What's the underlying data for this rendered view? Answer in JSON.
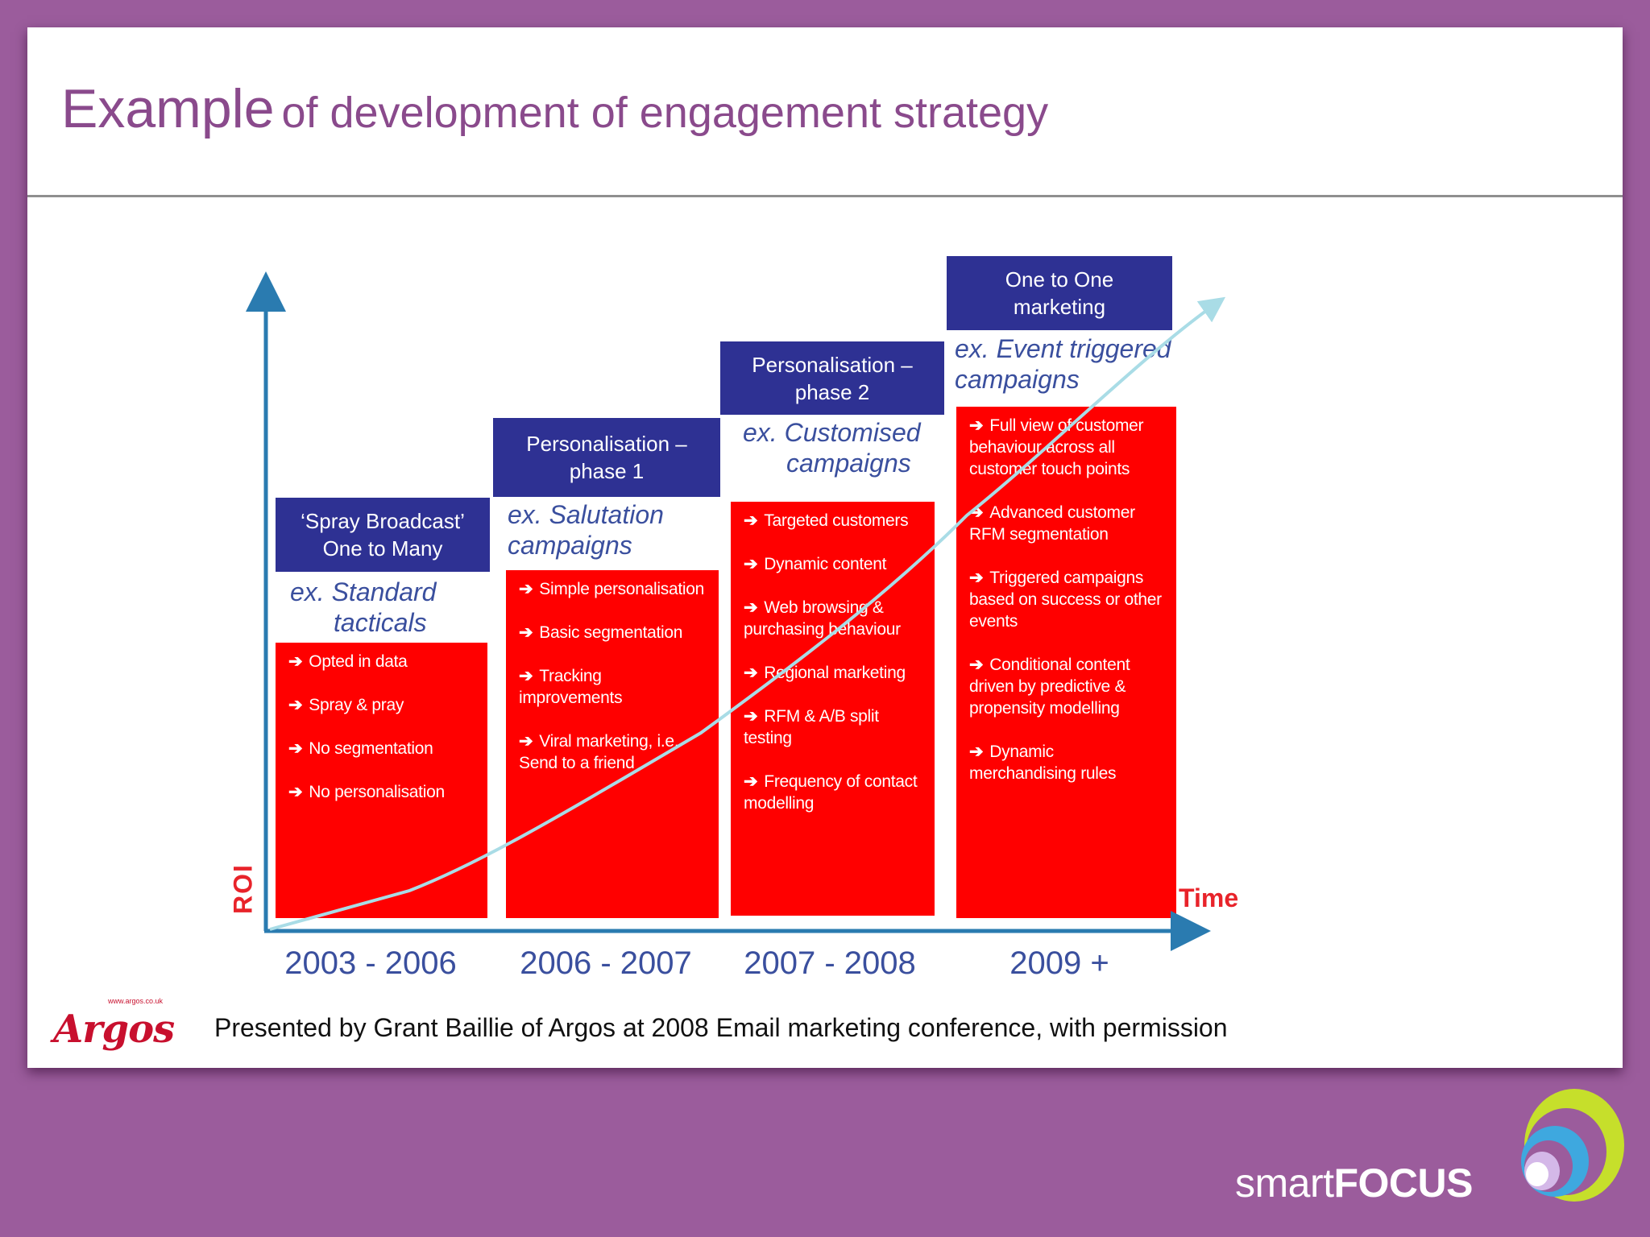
{
  "slide": {
    "title_main": "Example",
    "title_rest": "of development of engagement strategy",
    "credit": "Presented by Grant Baillie of Argos at 2008 Email marketing conference, with permission"
  },
  "axis": {
    "y_label": "ROI",
    "x_label": "Time"
  },
  "stages": [
    {
      "heading_line1": "‘Spray Broadcast’",
      "heading_line2": "One to Many",
      "example_line1": "ex.  Standard",
      "example_line2": "tacticals",
      "years": "2003 - 2006",
      "items": [
        "Opted in data",
        "Spray & pray",
        "No segmentation",
        "No personalisation"
      ]
    },
    {
      "heading_line1": "Personalisation –",
      "heading_line2": "phase 1",
      "example_line1": "ex.  Salutation",
      "example_line2": "campaigns",
      "years": "2006 - 2007",
      "items": [
        "Simple personalisation",
        "Basic segmentation",
        "Tracking improvements",
        "Viral marketing, i.e. Send to a friend"
      ]
    },
    {
      "heading_line1": "Personalisation –",
      "heading_line2": "phase 2",
      "example_line1": "ex.  Customised",
      "example_line2": "campaigns",
      "years": "2007 - 2008",
      "items": [
        "Targeted customers",
        "Dynamic content",
        "Web browsing & purchasing behaviour",
        "Regional marketing",
        "RFM & A/B split testing",
        "Frequency of contact modelling"
      ]
    },
    {
      "heading_line1": "One to One",
      "heading_line2": "marketing",
      "example_line1": "ex.  Event triggered",
      "example_line2": "campaigns",
      "years": "2009 +",
      "items": [
        "Full view of customer behaviour across all customer touch points",
        "Advanced customer RFM segmentation",
        "Triggered campaigns based on success or other events",
        "Conditional content driven by predictive & propensity modelling",
        "Dynamic merchandising rules"
      ]
    }
  ],
  "logos": {
    "argos_url": "www.argos.co.uk",
    "argos_word": "Argos",
    "brand_light": "smart",
    "brand_bold": "FOCUS"
  },
  "colors": {
    "background": "#9b5c9c",
    "title": "#8a4a8c",
    "heading_box": "#2e3193",
    "item_box": "#ff0000",
    "example_text": "#3a4f9e",
    "axis": "#2a7bb0",
    "trend_line": "#a9dce6",
    "axis_label": "#e8232a"
  }
}
